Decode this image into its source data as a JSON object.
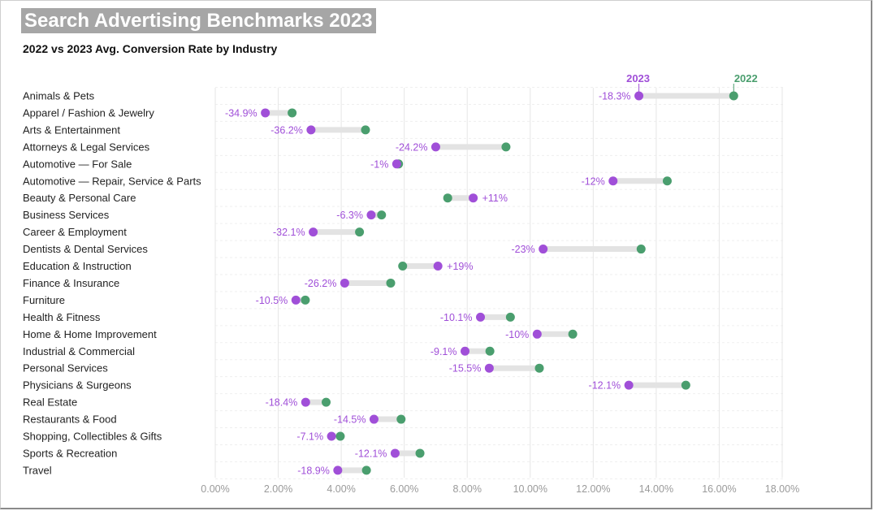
{
  "title": "Search Advertising Benchmarks 2023",
  "subtitle": "2022 vs 2023 Avg. Conversion Rate by Industry",
  "colors": {
    "y2023": "#a04fd8",
    "y2022": "#4a9e6e",
    "bar": "#e3e3e3",
    "grid": "#e6e6e6",
    "tick": "#9a9a9a",
    "category": "#222222"
  },
  "chart_data": {
    "type": "dumbbell",
    "xlim": [
      0,
      18
    ],
    "xticks": [
      "0.00%",
      "2.00%",
      "4.00%",
      "6.00%",
      "8.00%",
      "10.00%",
      "12.00%",
      "14.00%",
      "16.00%",
      "18.00%"
    ],
    "legend": {
      "label_2023": "2023",
      "label_2022": "2022"
    },
    "series": [
      {
        "name": "2023",
        "color": "#a04fd8"
      },
      {
        "name": "2022",
        "color": "#4a9e6e"
      }
    ],
    "rows": [
      {
        "category": "Animals & Pets",
        "v2022": 16.46,
        "v2023": 13.45,
        "change": "-18.3%"
      },
      {
        "category": "Apparel / Fashion & Jewelry",
        "v2022": 2.44,
        "v2023": 1.59,
        "change": "-34.9%"
      },
      {
        "category": "Arts & Entertainment",
        "v2022": 4.77,
        "v2023": 3.04,
        "change": "-36.2%"
      },
      {
        "category": "Attorneys & Legal Services",
        "v2022": 9.23,
        "v2023": 7.0,
        "change": "-24.2%"
      },
      {
        "category": "Automotive — For Sale",
        "v2022": 5.82,
        "v2023": 5.76,
        "change": "-1%"
      },
      {
        "category": "Automotive — Repair, Service & Parts",
        "v2022": 14.35,
        "v2023": 12.63,
        "change": "-12%"
      },
      {
        "category": "Beauty & Personal Care",
        "v2022": 7.38,
        "v2023": 8.19,
        "change": "+11%"
      },
      {
        "category": "Business Services",
        "v2022": 5.28,
        "v2023": 4.95,
        "change": "-6.3%"
      },
      {
        "category": "Career & Employment",
        "v2022": 4.58,
        "v2023": 3.11,
        "change": "-32.1%"
      },
      {
        "category": "Dentists & Dental Services",
        "v2022": 13.52,
        "v2023": 10.41,
        "change": "-23%"
      },
      {
        "category": "Education & Instruction",
        "v2022": 5.95,
        "v2023": 7.07,
        "change": "+19%"
      },
      {
        "category": "Finance & Insurance",
        "v2022": 5.57,
        "v2023": 4.11,
        "change": "-26.2%"
      },
      {
        "category": "Furniture",
        "v2022": 2.86,
        "v2023": 2.56,
        "change": "-10.5%"
      },
      {
        "category": "Health & Fitness",
        "v2022": 9.37,
        "v2023": 8.42,
        "change": "-10.1%"
      },
      {
        "category": "Home & Home Improvement",
        "v2022": 11.35,
        "v2023": 10.22,
        "change": "-10%"
      },
      {
        "category": "Industrial & Commercial",
        "v2022": 8.72,
        "v2023": 7.93,
        "change": "-9.1%"
      },
      {
        "category": "Personal Services",
        "v2022": 10.29,
        "v2023": 8.7,
        "change": "-15.5%"
      },
      {
        "category": "Physicians & Surgeons",
        "v2022": 14.94,
        "v2023": 13.13,
        "change": "-12.1%"
      },
      {
        "category": "Real Estate",
        "v2022": 3.52,
        "v2023": 2.87,
        "change": "-18.4%"
      },
      {
        "category": "Restaurants & Food",
        "v2022": 5.9,
        "v2023": 5.04,
        "change": "-14.5%"
      },
      {
        "category": "Shopping, Collectibles & Gifts",
        "v2022": 3.97,
        "v2023": 3.69,
        "change": "-7.1%"
      },
      {
        "category": "Sports & Recreation",
        "v2022": 6.5,
        "v2023": 5.71,
        "change": "-12.1%"
      },
      {
        "category": "Travel",
        "v2022": 4.8,
        "v2023": 3.89,
        "change": "-18.9%"
      }
    ]
  }
}
